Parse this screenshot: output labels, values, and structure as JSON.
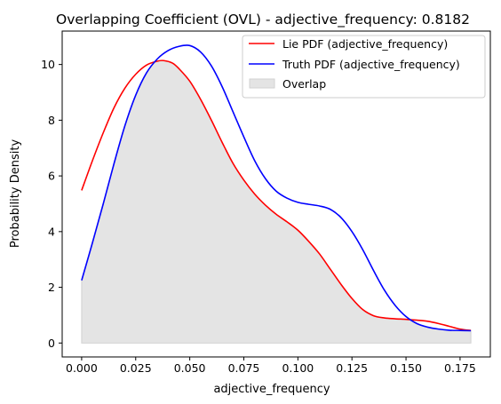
{
  "chart_data": {
    "type": "line",
    "title": "Overlapping Coefficient (OVL) - adjective_frequency: 0.8182",
    "xlabel": "adjective_frequency",
    "ylabel": "Probability Density",
    "xlim": [
      -0.009,
      0.189
    ],
    "ylim": [
      -0.5,
      11.2
    ],
    "xticks": [
      0.0,
      0.025,
      0.05,
      0.075,
      0.1,
      0.125,
      0.15,
      0.175
    ],
    "xtick_labels": [
      "0.000",
      "0.025",
      "0.050",
      "0.075",
      "0.100",
      "0.125",
      "0.150",
      "0.175"
    ],
    "yticks": [
      0,
      2,
      4,
      6,
      8,
      10
    ],
    "ytick_labels": [
      "0",
      "2",
      "4",
      "6",
      "8",
      "10"
    ],
    "grid": false,
    "legend_position": "top-right",
    "series": [
      {
        "name": "Lie PDF (adjective_frequency)",
        "color": "#ff0000",
        "x": [
          0.0,
          0.005,
          0.01,
          0.015,
          0.02,
          0.025,
          0.03,
          0.035,
          0.038,
          0.042,
          0.045,
          0.05,
          0.055,
          0.06,
          0.065,
          0.07,
          0.075,
          0.08,
          0.085,
          0.09,
          0.095,
          0.1,
          0.105,
          0.11,
          0.115,
          0.12,
          0.125,
          0.13,
          0.135,
          0.14,
          0.145,
          0.15,
          0.155,
          0.16,
          0.165,
          0.17,
          0.175,
          0.18
        ],
        "y": [
          5.48,
          6.55,
          7.55,
          8.45,
          9.15,
          9.65,
          9.98,
          10.12,
          10.14,
          10.05,
          9.85,
          9.4,
          8.75,
          8.0,
          7.2,
          6.45,
          5.85,
          5.35,
          4.95,
          4.62,
          4.35,
          4.05,
          3.65,
          3.2,
          2.65,
          2.1,
          1.6,
          1.2,
          0.98,
          0.9,
          0.87,
          0.85,
          0.82,
          0.78,
          0.7,
          0.6,
          0.5,
          0.45
        ]
      },
      {
        "name": "Truth PDF (adjective_frequency)",
        "color": "#0000ff",
        "x": [
          0.0,
          0.005,
          0.01,
          0.015,
          0.02,
          0.025,
          0.03,
          0.035,
          0.04,
          0.045,
          0.05,
          0.055,
          0.06,
          0.065,
          0.07,
          0.075,
          0.08,
          0.085,
          0.09,
          0.095,
          0.1,
          0.105,
          0.11,
          0.115,
          0.12,
          0.125,
          0.13,
          0.135,
          0.14,
          0.145,
          0.15,
          0.155,
          0.16,
          0.165,
          0.17,
          0.175,
          0.18
        ],
        "y": [
          2.25,
          3.6,
          5.0,
          6.45,
          7.8,
          8.9,
          9.7,
          10.2,
          10.5,
          10.65,
          10.68,
          10.45,
          9.95,
          9.2,
          8.3,
          7.4,
          6.55,
          5.9,
          5.45,
          5.2,
          5.05,
          4.98,
          4.92,
          4.8,
          4.5,
          4.0,
          3.35,
          2.6,
          1.9,
          1.35,
          0.95,
          0.7,
          0.57,
          0.5,
          0.46,
          0.45,
          0.44
        ]
      }
    ],
    "overlap": {
      "name": "Overlap",
      "color": "#e4e4e4",
      "edge_color": "#d2d2d2"
    }
  }
}
